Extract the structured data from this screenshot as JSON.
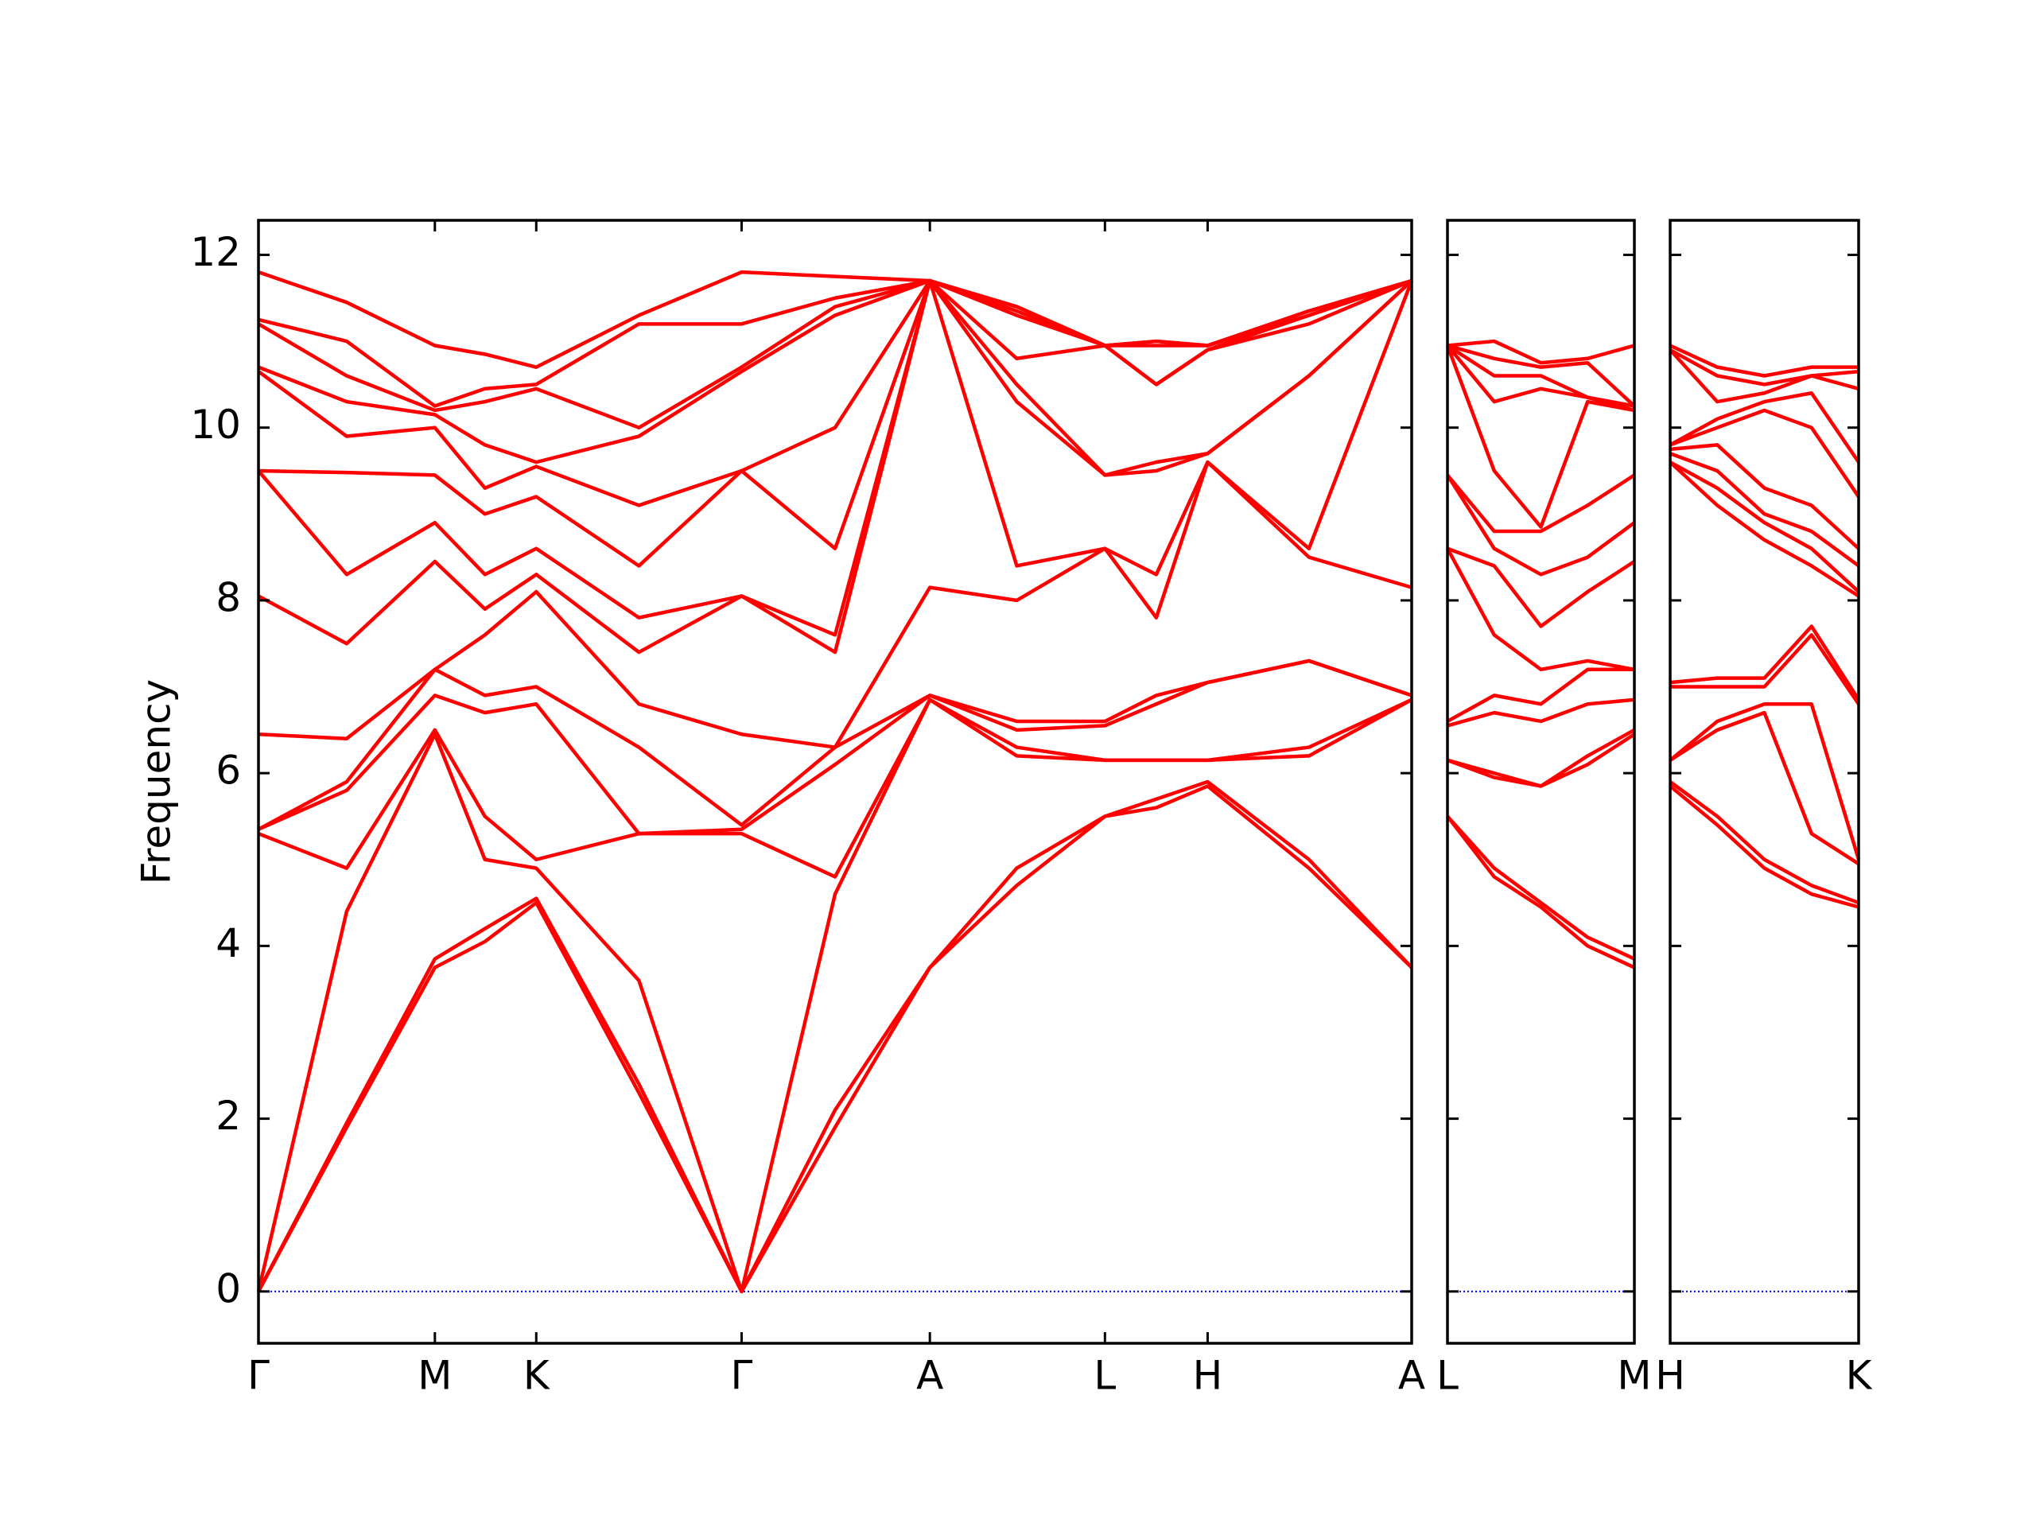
{
  "chart_data": [
    {
      "type": "line",
      "ylabel": "Frequency",
      "color": "#ff0000",
      "hline": 0,
      "hline_color": "#0000ff",
      "xlim": [
        0,
        8.76
      ],
      "ylim": [
        -0.6,
        12.4
      ],
      "yticks": [
        0,
        2,
        4,
        6,
        8,
        10,
        12
      ],
      "xticks": [
        {
          "value": 0,
          "label": "Γ"
        },
        {
          "value": 1.34,
          "label": "M"
        },
        {
          "value": 2.11,
          "label": "K"
        },
        {
          "value": 3.67,
          "label": "Γ"
        },
        {
          "value": 5.1,
          "label": "A"
        },
        {
          "value": 6.43,
          "label": "L"
        },
        {
          "value": 7.21,
          "label": "H"
        },
        {
          "value": 8.76,
          "label": "A"
        }
      ],
      "x": [
        0,
        0.67,
        1.34,
        1.72,
        2.11,
        2.89,
        3.67,
        4.38,
        5.1,
        5.76,
        6.43,
        6.82,
        7.21,
        7.98,
        8.76
      ],
      "series": [
        {
          "values": [
            0,
            1.9,
            3.75,
            4.05,
            4.5,
            2.3,
            0,
            1.9,
            3.75,
            4.7,
            5.5,
            5.6,
            5.85,
            4.9,
            3.75
          ]
        },
        {
          "values": [
            0,
            1.95,
            3.85,
            4.2,
            4.55,
            2.4,
            0,
            2.1,
            3.75,
            4.9,
            5.5,
            5.7,
            5.9,
            5.0,
            3.75
          ]
        },
        {
          "values": [
            0,
            4.4,
            6.45,
            5.0,
            4.9,
            3.6,
            0,
            4.6,
            6.85,
            6.2,
            6.15,
            6.15,
            6.15,
            6.2,
            6.85
          ]
        },
        {
          "values": [
            5.3,
            4.9,
            6.5,
            5.5,
            5.0,
            5.3,
            5.3,
            4.8,
            6.85,
            6.3,
            6.15,
            6.15,
            6.15,
            6.3,
            6.85
          ]
        },
        {
          "values": [
            5.35,
            5.8,
            6.9,
            6.7,
            6.8,
            5.3,
            5.35,
            6.1,
            6.9,
            6.5,
            6.55,
            6.8,
            7.05,
            7.3,
            6.9
          ]
        },
        {
          "values": [
            5.35,
            5.9,
            7.2,
            6.9,
            7.0,
            6.3,
            5.4,
            6.3,
            6.9,
            6.6,
            6.6,
            6.9,
            7.05,
            7.3,
            6.9
          ]
        },
        {
          "values": [
            6.45,
            6.4,
            7.2,
            7.6,
            8.1,
            6.8,
            6.45,
            6.3,
            8.15,
            8.0,
            8.6,
            7.8,
            9.6,
            8.5,
            8.15
          ]
        },
        {
          "values": [
            8.05,
            7.5,
            8.45,
            7.9,
            8.3,
            7.4,
            8.05,
            7.4,
            11.7,
            8.4,
            8.6,
            8.3,
            9.6,
            8.6,
            11.7
          ]
        },
        {
          "values": [
            9.5,
            8.3,
            8.9,
            8.3,
            8.6,
            7.8,
            8.05,
            7.6,
            11.7,
            10.3,
            9.45,
            9.5,
            9.7,
            10.6,
            11.7
          ]
        },
        {
          "values": [
            9.5,
            9.48,
            9.45,
            9.0,
            9.2,
            8.4,
            9.5,
            8.6,
            11.7,
            10.5,
            9.45,
            9.6,
            9.7,
            10.6,
            11.7
          ]
        },
        {
          "values": [
            10.65,
            9.9,
            10.0,
            9.3,
            9.55,
            9.1,
            9.5,
            10.0,
            11.7,
            10.8,
            10.95,
            10.5,
            10.9,
            11.2,
            11.7
          ]
        },
        {
          "values": [
            10.7,
            10.3,
            10.15,
            9.8,
            9.6,
            9.9,
            10.65,
            11.3,
            11.7,
            11.3,
            10.95,
            10.5,
            10.9,
            11.3,
            11.7
          ]
        },
        {
          "values": [
            11.2,
            10.6,
            10.2,
            10.3,
            10.45,
            10.0,
            10.7,
            11.4,
            11.7,
            11.35,
            10.95,
            10.95,
            10.95,
            11.3,
            11.7
          ]
        },
        {
          "values": [
            11.25,
            11.0,
            10.25,
            10.45,
            10.5,
            11.2,
            11.2,
            11.5,
            11.7,
            11.4,
            10.95,
            11.0,
            10.95,
            11.35,
            11.7
          ]
        },
        {
          "values": [
            11.8,
            11.45,
            10.95,
            10.85,
            10.7,
            11.3,
            11.8,
            11.75,
            11.7,
            11.4,
            10.95,
            11.0,
            10.95,
            11.35,
            11.7
          ]
        }
      ]
    },
    {
      "type": "line",
      "color": "#ff0000",
      "hline": 0,
      "hline_color": "#0000ff",
      "xlim": [
        0,
        1.42
      ],
      "ylim": [
        -0.6,
        12.4
      ],
      "xticks": [
        {
          "value": 0,
          "label": "L"
        },
        {
          "value": 1.42,
          "label": "M"
        }
      ],
      "x": [
        0,
        0.355,
        0.71,
        1.065,
        1.42
      ],
      "series": [
        {
          "values": [
            5.5,
            4.8,
            4.45,
            4.0,
            3.75
          ]
        },
        {
          "values": [
            5.5,
            4.9,
            4.5,
            4.1,
            3.85
          ]
        },
        {
          "values": [
            6.15,
            5.95,
            5.85,
            6.1,
            6.45
          ]
        },
        {
          "values": [
            6.15,
            6.0,
            5.85,
            6.2,
            6.5
          ]
        },
        {
          "values": [
            6.55,
            6.7,
            6.6,
            6.8,
            6.85
          ]
        },
        {
          "values": [
            6.6,
            6.9,
            6.8,
            7.2,
            7.2
          ]
        },
        {
          "values": [
            8.6,
            7.6,
            7.2,
            7.3,
            7.2
          ]
        },
        {
          "values": [
            8.6,
            8.4,
            7.7,
            8.1,
            8.45
          ]
        },
        {
          "values": [
            9.45,
            8.6,
            8.3,
            8.5,
            8.9
          ]
        },
        {
          "values": [
            9.45,
            8.8,
            8.8,
            9.1,
            9.45
          ]
        },
        {
          "values": [
            10.95,
            9.5,
            8.85,
            10.3,
            10.2
          ]
        },
        {
          "values": [
            10.95,
            10.3,
            10.45,
            10.35,
            10.2
          ]
        },
        {
          "values": [
            10.95,
            10.6,
            10.6,
            10.35,
            10.25
          ]
        },
        {
          "values": [
            10.95,
            10.8,
            10.7,
            10.75,
            10.25
          ]
        },
        {
          "values": [
            10.95,
            11.0,
            10.75,
            10.8,
            10.95
          ]
        }
      ]
    },
    {
      "type": "line",
      "color": "#ff0000",
      "hline": 0,
      "hline_color": "#0000ff",
      "xlim": [
        0,
        1.43
      ],
      "ylim": [
        -0.6,
        12.4
      ],
      "xticks": [
        {
          "value": 0,
          "label": "H"
        },
        {
          "value": 1.43,
          "label": "K"
        }
      ],
      "x": [
        0,
        0.3575,
        0.715,
        1.0725,
        1.43
      ],
      "series": [
        {
          "values": [
            5.85,
            5.4,
            4.9,
            4.6,
            4.45
          ]
        },
        {
          "values": [
            5.9,
            5.5,
            5.0,
            4.7,
            4.5
          ]
        },
        {
          "values": [
            6.15,
            6.5,
            6.7,
            5.3,
            4.95
          ]
        },
        {
          "values": [
            6.15,
            6.6,
            6.8,
            6.8,
            5.0
          ]
        },
        {
          "values": [
            7.0,
            7.0,
            7.0,
            7.6,
            6.8
          ]
        },
        {
          "values": [
            7.05,
            7.1,
            7.1,
            7.7,
            6.85
          ]
        },
        {
          "values": [
            9.6,
            9.1,
            8.7,
            8.4,
            8.05
          ]
        },
        {
          "values": [
            9.6,
            9.3,
            8.9,
            8.6,
            8.1
          ]
        },
        {
          "values": [
            9.7,
            9.5,
            9.0,
            8.8,
            8.4
          ]
        },
        {
          "values": [
            9.75,
            9.8,
            9.3,
            9.1,
            8.6
          ]
        },
        {
          "values": [
            9.8,
            10.0,
            10.2,
            10.0,
            9.2
          ]
        },
        {
          "values": [
            9.8,
            10.1,
            10.3,
            10.4,
            9.6
          ]
        },
        {
          "values": [
            10.9,
            10.3,
            10.4,
            10.6,
            10.45
          ]
        },
        {
          "values": [
            10.9,
            10.6,
            10.5,
            10.6,
            10.65
          ]
        },
        {
          "values": [
            10.95,
            10.7,
            10.6,
            10.7,
            10.7
          ]
        }
      ]
    }
  ]
}
